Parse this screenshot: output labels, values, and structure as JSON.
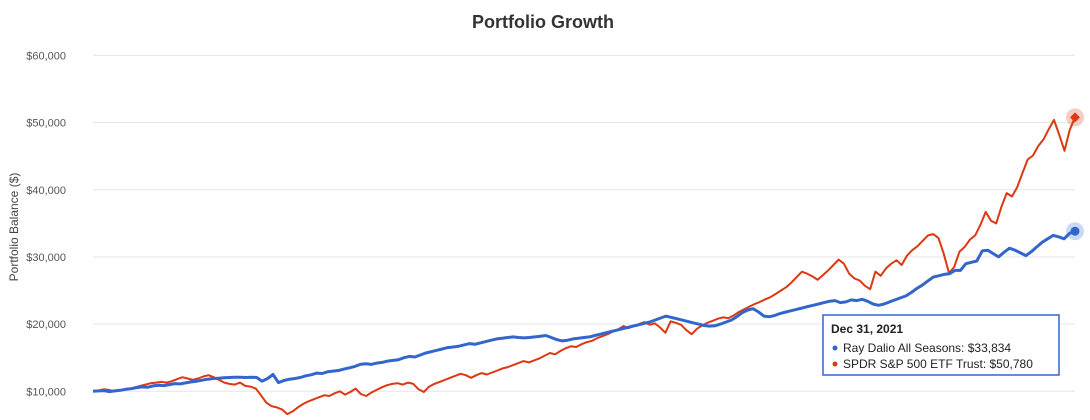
{
  "chart_data": {
    "type": "line",
    "title": "Portfolio Growth",
    "ylabel": "Portfolio Balance ($)",
    "xlabel": "",
    "ylim": [
      9000,
      62000
    ],
    "yticks": [
      10000,
      20000,
      30000,
      40000,
      50000,
      60000
    ],
    "ytick_labels": [
      "$10,000",
      "$20,000",
      "$30,000",
      "$40,000",
      "$50,000",
      "$60,000"
    ],
    "grid": true,
    "legend": "none",
    "series": [
      {
        "name": "Ray Dalio All Seasons",
        "color": "#3366cc",
        "values": [
          10000,
          10050,
          10100,
          9950,
          10050,
          10150,
          10300,
          10400,
          10550,
          10650,
          10600,
          10800,
          10900,
          10850,
          11000,
          11150,
          11100,
          11250,
          11400,
          11500,
          11650,
          11800,
          11900,
          11950,
          12000,
          12050,
          12100,
          12100,
          12050,
          12100,
          12050,
          11500,
          11900,
          12500,
          11300,
          11600,
          11800,
          11900,
          12050,
          12300,
          12450,
          12700,
          12650,
          12900,
          13000,
          13100,
          13300,
          13500,
          13700,
          14000,
          14100,
          14000,
          14200,
          14300,
          14500,
          14600,
          14700,
          15000,
          15200,
          15100,
          15400,
          15700,
          15900,
          16100,
          16300,
          16500,
          16600,
          16700,
          16900,
          17100,
          17000,
          17200,
          17400,
          17600,
          17800,
          17900,
          18000,
          18100,
          18000,
          17950,
          18000,
          18100,
          18200,
          18300,
          18000,
          17700,
          17500,
          17600,
          17800,
          17900,
          18000,
          18100,
          18300,
          18500,
          18700,
          18900,
          19100,
          19300,
          19500,
          19700,
          19900,
          20100,
          20300,
          20600,
          20900,
          21200,
          21000,
          20800,
          20600,
          20400,
          20200,
          20000,
          19800,
          19700,
          19750,
          20000,
          20300,
          20600,
          21100,
          21700,
          22100,
          22300,
          21800,
          21200,
          21100,
          21300,
          21600,
          21800,
          22000,
          22200,
          22400,
          22600,
          22800,
          23000,
          23200,
          23400,
          23500,
          23200,
          23300,
          23600,
          23500,
          23700,
          23400,
          23000,
          22800,
          23000,
          23300,
          23600,
          23900,
          24200,
          24700,
          25300,
          25800,
          26400,
          27000,
          27200,
          27400,
          27500,
          28000,
          28000,
          29000,
          29200,
          29400,
          30900,
          31000,
          30500,
          30000,
          30700,
          31300,
          31000,
          30600,
          30200,
          30800,
          31500,
          32200,
          32700,
          33200,
          33000,
          32700,
          33500,
          33834
        ]
      },
      {
        "name": "SPDR S&P 500 ETF Trust",
        "color": "#dc3912",
        "values": [
          10000,
          10100,
          10300,
          10200,
          10000,
          10100,
          10200,
          10350,
          10600,
          10800,
          11000,
          11200,
          11300,
          11400,
          11300,
          11500,
          11800,
          12100,
          11900,
          11700,
          11900,
          12200,
          12400,
          12100,
          11700,
          11300,
          11100,
          11000,
          11300,
          10800,
          10700,
          10400,
          9400,
          8300,
          7800,
          7600,
          7300,
          6600,
          7000,
          7600,
          8100,
          8500,
          8800,
          9100,
          9400,
          9300,
          9700,
          10000,
          9500,
          9900,
          10400,
          9600,
          9300,
          9800,
          10200,
          10600,
          10900,
          11100,
          11200,
          11000,
          11300,
          11100,
          10300,
          9900,
          10700,
          11100,
          11400,
          11700,
          12000,
          12300,
          12600,
          12400,
          12000,
          12400,
          12700,
          12500,
          12800,
          13100,
          13400,
          13600,
          13900,
          14200,
          14500,
          14300,
          14600,
          14900,
          15300,
          15700,
          15500,
          16000,
          16400,
          16700,
          16600,
          17000,
          17300,
          17500,
          17900,
          18200,
          18500,
          18900,
          19200,
          19700,
          19400,
          19700,
          20000,
          20300,
          19900,
          20100,
          19500,
          18700,
          20400,
          20200,
          19900,
          19100,
          18500,
          19300,
          19800,
          20200,
          20500,
          20800,
          21000,
          20900,
          21300,
          21800,
          22200,
          22600,
          23000,
          23300,
          23700,
          24000,
          24500,
          25000,
          25500,
          26200,
          27000,
          27800,
          27500,
          27100,
          26600,
          27300,
          28000,
          28800,
          29600,
          29000,
          27500,
          26800,
          26500,
          25700,
          25200,
          27800,
          27200,
          28300,
          29000,
          29500,
          28800,
          30200,
          31000,
          31600,
          32400,
          33200,
          33400,
          32800,
          30500,
          27600,
          28500,
          30800,
          31500,
          32600,
          33200,
          34800,
          36700,
          35400,
          35000,
          37500,
          39500,
          39000,
          40400,
          42500,
          44500,
          45100,
          46500,
          47500,
          49000,
          50400,
          48200,
          45800,
          48900,
          50780
        ]
      }
    ],
    "tooltip": {
      "date": "Dec 31, 2021",
      "rows": [
        {
          "label": "Ray Dalio All Seasons: $33,834",
          "color": "#3366cc"
        },
        {
          "label": "SPDR S&P 500 ETF Trust: $50,780",
          "color": "#dc3912"
        }
      ],
      "border_color": "#3366cc"
    }
  }
}
